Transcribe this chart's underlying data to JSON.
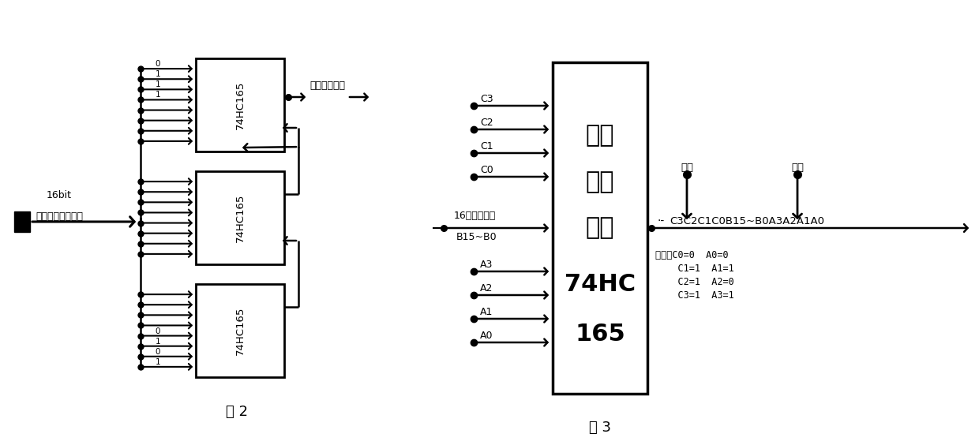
{
  "bg_color": "#ffffff",
  "fig2": {
    "title": "图 2",
    "input_label_line1": "16bit",
    "input_label_line2": "继电联锁信息输入",
    "output_label": "串并转换输出",
    "chip_label": "74HC165",
    "top_labels": [
      "0",
      "1",
      "1",
      "1"
    ],
    "bottom_labels": [
      "0",
      "1",
      "0",
      "1"
    ]
  },
  "fig3": {
    "title": "图 3",
    "chip_text_line1": "串并",
    "chip_text_line2": "转换",
    "chip_text_line3": "芯片",
    "chip_text_line4": "74HC",
    "chip_text_line5": "165",
    "input_top": [
      "C3",
      "C2",
      "C1",
      "C0"
    ],
    "input_mid_line1": "16路并行输入",
    "input_mid_line2": "B15~B0",
    "input_bot": [
      "A3",
      "A2",
      "A1",
      "A0"
    ],
    "output_prefix": "·-",
    "output_label": "C3C2C1C0B15~B0A3A2A1A0",
    "frame_tail": "帧尾",
    "frame_head": "帧头",
    "note_line1": "其中，C0=0  A0=0",
    "note_line2": "    C1=1  A1=1",
    "note_line3": "    C2=1  A2=0",
    "note_line4": "    C3=1  A3=1"
  }
}
